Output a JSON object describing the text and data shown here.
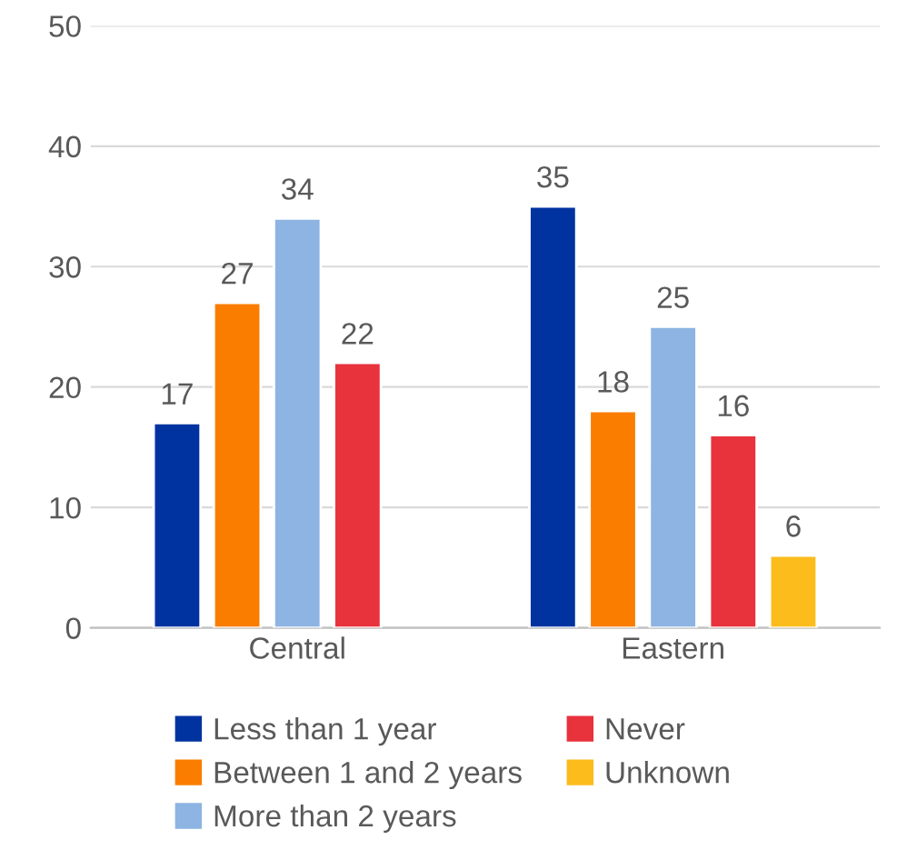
{
  "chart_data": {
    "type": "bar",
    "categories": [
      "Central",
      "Eastern"
    ],
    "series": [
      {
        "name": "Less than 1 year",
        "color": "#0033a0",
        "values": [
          17,
          35
        ]
      },
      {
        "name": "Between 1 and 2 years",
        "color": "#fa7d00",
        "values": [
          27,
          18
        ]
      },
      {
        "name": "More than 2 years",
        "color": "#8db4e2",
        "values": [
          34,
          25
        ]
      },
      {
        "name": "Never",
        "color": "#e8323c",
        "values": [
          22,
          16
        ]
      },
      {
        "name": "Unknown",
        "color": "#fbbc1c",
        "values": [
          null,
          6
        ]
      }
    ],
    "ylim": [
      0,
      50
    ],
    "yticks": [
      0,
      10,
      20,
      30,
      40,
      50
    ],
    "grid": "y",
    "legend": "bottom",
    "data_labels": true
  }
}
